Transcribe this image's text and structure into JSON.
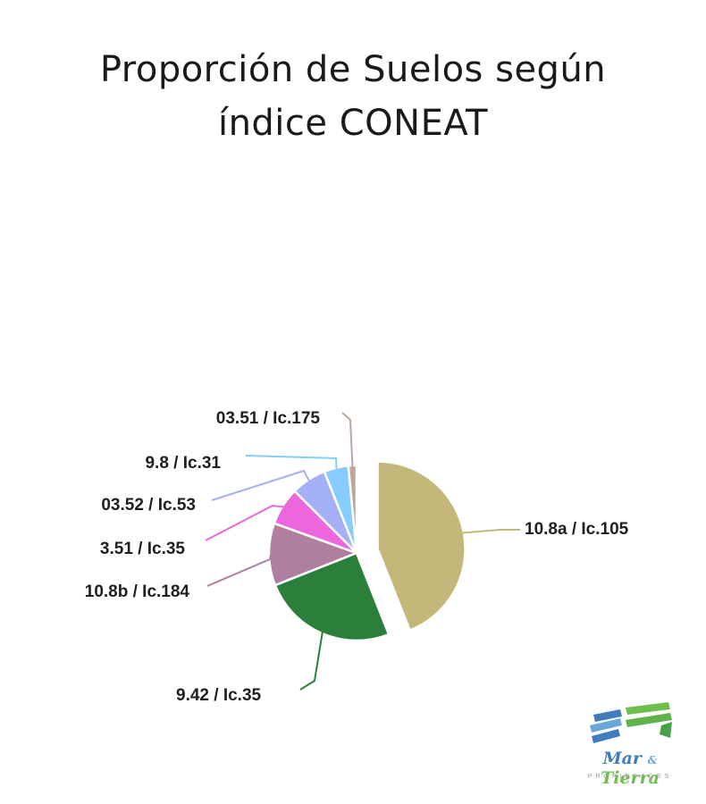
{
  "chart_data": {
    "type": "pie",
    "title_lines": [
      "Proporción de Suelos según",
      "índice CONEAT"
    ],
    "slices": [
      {
        "label": "10.8a / Ic.105",
        "value": 44.0,
        "color": "#c4b77a",
        "exploded": true
      },
      {
        "label": "9.42 / Ic.35",
        "value": 25.0,
        "color": "#2b7f3b"
      },
      {
        "label": "10.8b / Ic.184",
        "value": 11.5,
        "color": "#b07fa0"
      },
      {
        "label": "3.51 / Ic.35",
        "value": 7.0,
        "color": "#ee66dc"
      },
      {
        "label": "03.52 / Ic.53",
        "value": 6.5,
        "color": "#a4b0f5"
      },
      {
        "label": "9.8 / Ic.31",
        "value": 4.5,
        "color": "#86ccff"
      },
      {
        "label": "03.51 / Ic.175",
        "value": 1.5,
        "color": "#bba79c"
      }
    ]
  },
  "logo": {
    "brand_word1": "Mar",
    "brand_amp": "&",
    "brand_word2": "Tierra",
    "subtitle": "PROPIEDADES",
    "colors": {
      "blue": "#3f7bbf",
      "light_blue": "#6aa6d8",
      "green": "#6cbf4a"
    }
  }
}
